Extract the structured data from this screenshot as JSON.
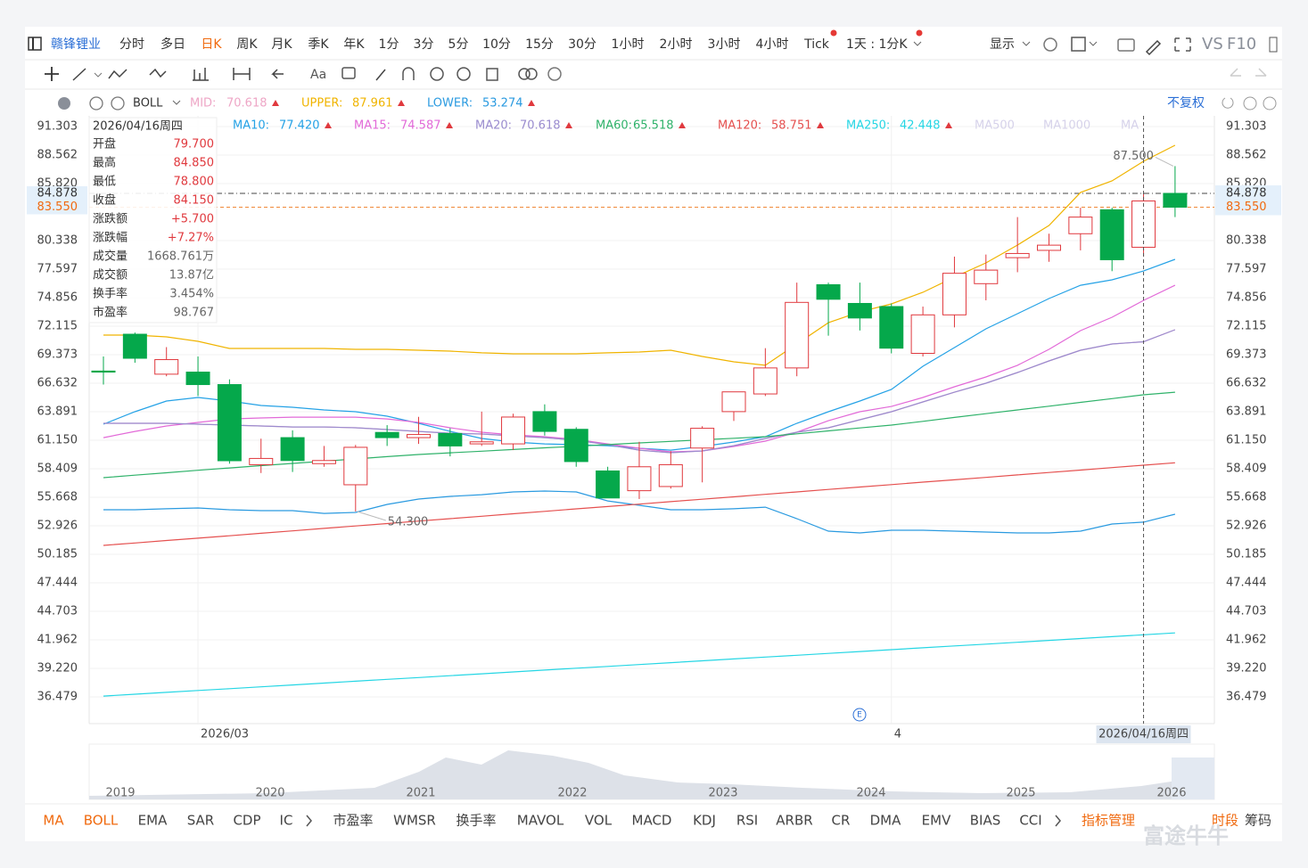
{
  "toolbar": {
    "stock": "赣锋锂业",
    "periods": [
      "分时",
      "多日",
      "日K",
      "周K",
      "月K",
      "季K",
      "年K",
      "1分",
      "3分",
      "5分",
      "10分",
      "15分",
      "30分",
      "1小时",
      "2小时",
      "3小时",
      "4小时",
      "Tick"
    ],
    "period_selector": "1天 : 1分K",
    "display": "显示",
    "compare": "VS",
    "f10": "F10"
  },
  "toolbar2": {
    "font": "Aa"
  },
  "indicator_bar": {
    "name": "BOLL",
    "adjust": "不复权"
  },
  "info_panel": {
    "date": "2026/04/16周四",
    "rows": [
      [
        "开盘",
        "79.700"
      ],
      [
        "最高",
        "84.850"
      ],
      [
        "最低",
        "78.800"
      ],
      [
        "收盘",
        "84.150"
      ],
      [
        "涨跌额",
        "+5.700"
      ],
      [
        "涨跌幅",
        "+7.27%"
      ],
      [
        "成交量",
        "1668.761万"
      ],
      [
        "成交额",
        "13.87亿"
      ],
      [
        "换手率",
        "3.454%"
      ],
      [
        "市盈率",
        "98.767"
      ]
    ]
  },
  "chart_data": {
    "type": "candlestick",
    "categories": [
      null,
      null,
      null,
      "2026/03",
      null,
      null,
      null,
      null,
      null,
      null,
      null,
      null,
      null,
      null,
      null,
      null,
      null,
      null,
      null,
      null,
      null,
      null,
      null,
      null,
      null,
      "4",
      null,
      null,
      null,
      null,
      null,
      null,
      null,
      null,
      null
    ],
    "open": [
      67.8,
      71.34,
      67.5,
      67.7,
      66.5,
      58.8,
      61.4,
      58.9,
      56.87,
      61.9,
      61.4,
      61.8,
      60.8,
      60.8,
      63.9,
      62.2,
      58.2,
      56.3,
      56.7,
      60.4,
      63.9,
      65.6,
      68.1,
      76.1,
      74.3,
      74.0,
      69.5,
      73.2,
      76.2,
      78.7,
      79.4,
      81.0,
      83.3,
      79.7,
      84.878
    ],
    "high": [
      69.2,
      71.5,
      70.1,
      69.2,
      67.0,
      61.3,
      62.1,
      60.6,
      60.7,
      62.6,
      63.4,
      62.3,
      63.9,
      63.7,
      64.6,
      62.4,
      58.6,
      61.0,
      60.1,
      62.5,
      65.8,
      70.0,
      76.3,
      76.3,
      76.3,
      74.3,
      74.0,
      78.8,
      79.0,
      82.6,
      81.0,
      83.5,
      83.5,
      84.85,
      87.5
    ],
    "low": [
      66.5,
      68.6,
      67.3,
      65.4,
      58.9,
      58.0,
      58.1,
      58.6,
      54.3,
      60.6,
      60.8,
      59.6,
      60.6,
      60.2,
      61.6,
      58.6,
      55.6,
      55.5,
      56.5,
      57.1,
      63.0,
      65.4,
      67.3,
      71.2,
      71.7,
      69.5,
      69.2,
      72.0,
      74.6,
      77.3,
      78.3,
      79.4,
      77.4,
      78.8,
      82.6
    ],
    "close": [
      67.7,
      69.03,
      68.9,
      66.5,
      59.18,
      59.4,
      59.2,
      59.2,
      60.47,
      61.4,
      61.7,
      60.6,
      61.0,
      63.38,
      62.0,
      59.1,
      55.6,
      58.6,
      58.8,
      62.3,
      65.8,
      68.1,
      74.4,
      74.7,
      72.9,
      70.0,
      73.2,
      77.2,
      77.5,
      79.1,
      79.9,
      82.6,
      78.5,
      84.15,
      83.55
    ],
    "up_color": "#e0393e",
    "down_color": "#05a84b",
    "ylim": [
      33.91,
      92.33
    ],
    "yticks": [
      91.303,
      88.562,
      {
        "value": 85.82,
        "label": "85.820"
      },
      80.338,
      77.597,
      74.856,
      72.115,
      69.373,
      66.632,
      63.891,
      {
        "value": 61.15,
        "label": "61.150"
      },
      58.409,
      55.668,
      52.926,
      50.185,
      47.444,
      44.703,
      41.962,
      {
        "value": 39.22,
        "label": "39.220"
      },
      36.479
    ],
    "grid": true,
    "selected_index": 33,
    "max_high": {
      "value": 87.5,
      "label": "87.500"
    },
    "min_low": {
      "value": 54.3,
      "label": "54.300"
    },
    "price_lines": [
      {
        "value": 84.878,
        "color": "#444444"
      },
      {
        "value": 83.55,
        "label": "83.550",
        "color": "#f08a3a"
      }
    ],
    "series": [
      {
        "name": "MID:",
        "color": "#eea6c6",
        "current": 70.618,
        "values": [
          62.78,
          62.78,
          62.78,
          62.69,
          62.61,
          62.52,
          62.43,
          62.43,
          62.35,
          62.18,
          62.0,
          61.83,
          61.75,
          61.57,
          61.4,
          61.15,
          60.72,
          60.2,
          59.95,
          60.12,
          60.63,
          61.32,
          61.92,
          62.35,
          63.12,
          63.89,
          64.83,
          65.77,
          66.63,
          67.66,
          68.77,
          69.8,
          70.4,
          70.618,
          71.77
        ]
      },
      {
        "name": "UPPER:",
        "color": "#f0b400",
        "current": 87.961,
        "values": [
          71.26,
          71.26,
          71.09,
          70.66,
          69.97,
          69.97,
          69.97,
          69.97,
          69.89,
          69.89,
          69.8,
          69.72,
          69.55,
          69.46,
          69.46,
          69.46,
          69.55,
          69.63,
          69.8,
          69.2,
          68.69,
          68.35,
          70.4,
          72.45,
          73.49,
          74.26,
          75.37,
          76.83,
          78.2,
          79.91,
          81.79,
          84.97,
          86.08,
          87.961,
          89.5
        ]
      },
      {
        "name": "LOWER:",
        "color": "#2a9ae0",
        "current": 53.274,
        "values": [
          54.47,
          54.47,
          54.56,
          54.64,
          54.47,
          54.38,
          54.38,
          54.12,
          54.21,
          54.98,
          55.5,
          55.75,
          55.92,
          56.18,
          56.27,
          56.18,
          55.32,
          54.9,
          54.47,
          54.47,
          54.56,
          54.72,
          53.61,
          52.41,
          52.24,
          52.5,
          52.5,
          52.41,
          52.33,
          52.24,
          52.24,
          52.41,
          53.1,
          53.274,
          54.04
        ]
      },
      {
        "name": "MA10:",
        "color": "#25a2e6",
        "current": {
          "value": 77.42,
          "label": "77.420"
        },
        "values": [
          62.69,
          63.89,
          64.92,
          65.26,
          64.92,
          64.49,
          64.32,
          64.06,
          63.89,
          63.46,
          62.78,
          62.0,
          61.32,
          60.98,
          60.8,
          60.72,
          60.63,
          60.38,
          60.2,
          60.55,
          60.98,
          61.49,
          62.78,
          63.89,
          64.92,
          66.03,
          68.26,
          70.06,
          71.86,
          73.31,
          74.77,
          76.05,
          76.57,
          77.42,
          78.54
        ]
      },
      {
        "name": "MA15:",
        "color": "#e26ad8",
        "current": 74.587,
        "values": [
          61.4,
          62.0,
          62.52,
          62.86,
          63.2,
          63.29,
          63.37,
          63.37,
          63.37,
          63.2,
          62.86,
          62.35,
          61.92,
          61.66,
          61.49,
          61.23,
          60.8,
          60.38,
          60.04,
          60.12,
          60.55,
          61.06,
          61.92,
          63.03,
          63.89,
          64.4,
          65.26,
          66.29,
          67.23,
          68.35,
          69.89,
          71.69,
          72.97,
          74.587,
          76.05
        ]
      },
      {
        "name": "MA20:",
        "color": "#9a8ccf",
        "current": 70.618,
        "values": [
          62.78,
          62.78,
          62.78,
          62.69,
          62.61,
          62.52,
          62.43,
          62.43,
          62.35,
          62.18,
          62.0,
          61.83,
          61.75,
          61.57,
          61.4,
          61.15,
          60.72,
          60.2,
          59.95,
          60.12,
          60.63,
          61.32,
          61.92,
          62.35,
          63.12,
          63.89,
          64.83,
          65.77,
          66.63,
          67.66,
          68.77,
          69.8,
          70.4,
          70.618,
          71.77
        ]
      },
      {
        "name": "MA60:",
        "color": "#2fb26a",
        "current": 65.518,
        "values": [
          57.55,
          57.79,
          58.02,
          58.26,
          58.49,
          58.71,
          58.92,
          59.14,
          59.35,
          59.57,
          59.78,
          59.94,
          60.1,
          60.26,
          60.42,
          60.57,
          60.73,
          60.89,
          61.04,
          61.19,
          61.34,
          61.49,
          61.77,
          62.05,
          62.33,
          62.61,
          62.97,
          63.34,
          63.7,
          64.06,
          64.42,
          64.79,
          65.15,
          65.518,
          65.77
        ]
      },
      {
        "name": "MA120:",
        "color": "#e5504f",
        "current": 58.751,
        "values": [
          51.04,
          51.27,
          51.51,
          51.74,
          51.97,
          52.21,
          52.44,
          52.68,
          52.91,
          53.14,
          53.38,
          53.61,
          53.84,
          54.08,
          54.31,
          54.55,
          54.78,
          55.01,
          55.25,
          55.48,
          55.71,
          55.95,
          56.18,
          56.42,
          56.65,
          56.88,
          57.12,
          57.35,
          57.58,
          57.82,
          58.05,
          58.28,
          58.52,
          58.751,
          58.98
        ]
      },
      {
        "name": "MA250:",
        "color": "#25d6e4",
        "current": 42.448,
        "values": [
          36.56,
          36.74,
          36.92,
          37.1,
          37.27,
          37.45,
          37.63,
          37.81,
          37.99,
          38.17,
          38.34,
          38.52,
          38.7,
          38.88,
          39.06,
          39.24,
          39.41,
          39.59,
          39.77,
          39.95,
          40.13,
          40.31,
          40.48,
          40.66,
          40.84,
          41.02,
          41.2,
          41.38,
          41.55,
          41.73,
          41.91,
          42.09,
          42.27,
          42.448,
          42.63
        ]
      }
    ],
    "inactive_legend": [
      "MA500",
      "MA1000",
      "MA"
    ]
  },
  "navigator": {
    "years": [
      "2019",
      "2020",
      "2021",
      "2022",
      "2023",
      "2024",
      "2025",
      "2026"
    ]
  },
  "bottom_tabs": {
    "indicators": [
      "MA",
      "BOLL",
      "EMA",
      "SAR",
      "CDP",
      "IC"
    ],
    "more_indicators": [
      "市盈率",
      "WMSR",
      "换手率",
      "MAVOL",
      "VOL",
      "MACD",
      "KDJ",
      "RSI",
      "ARBR",
      "CR",
      "DMA",
      "EMV",
      "BIAS",
      "CCI"
    ],
    "manage": "指标管理",
    "session": "时段",
    "chips": "筹码"
  },
  "watermark": "富途牛牛"
}
